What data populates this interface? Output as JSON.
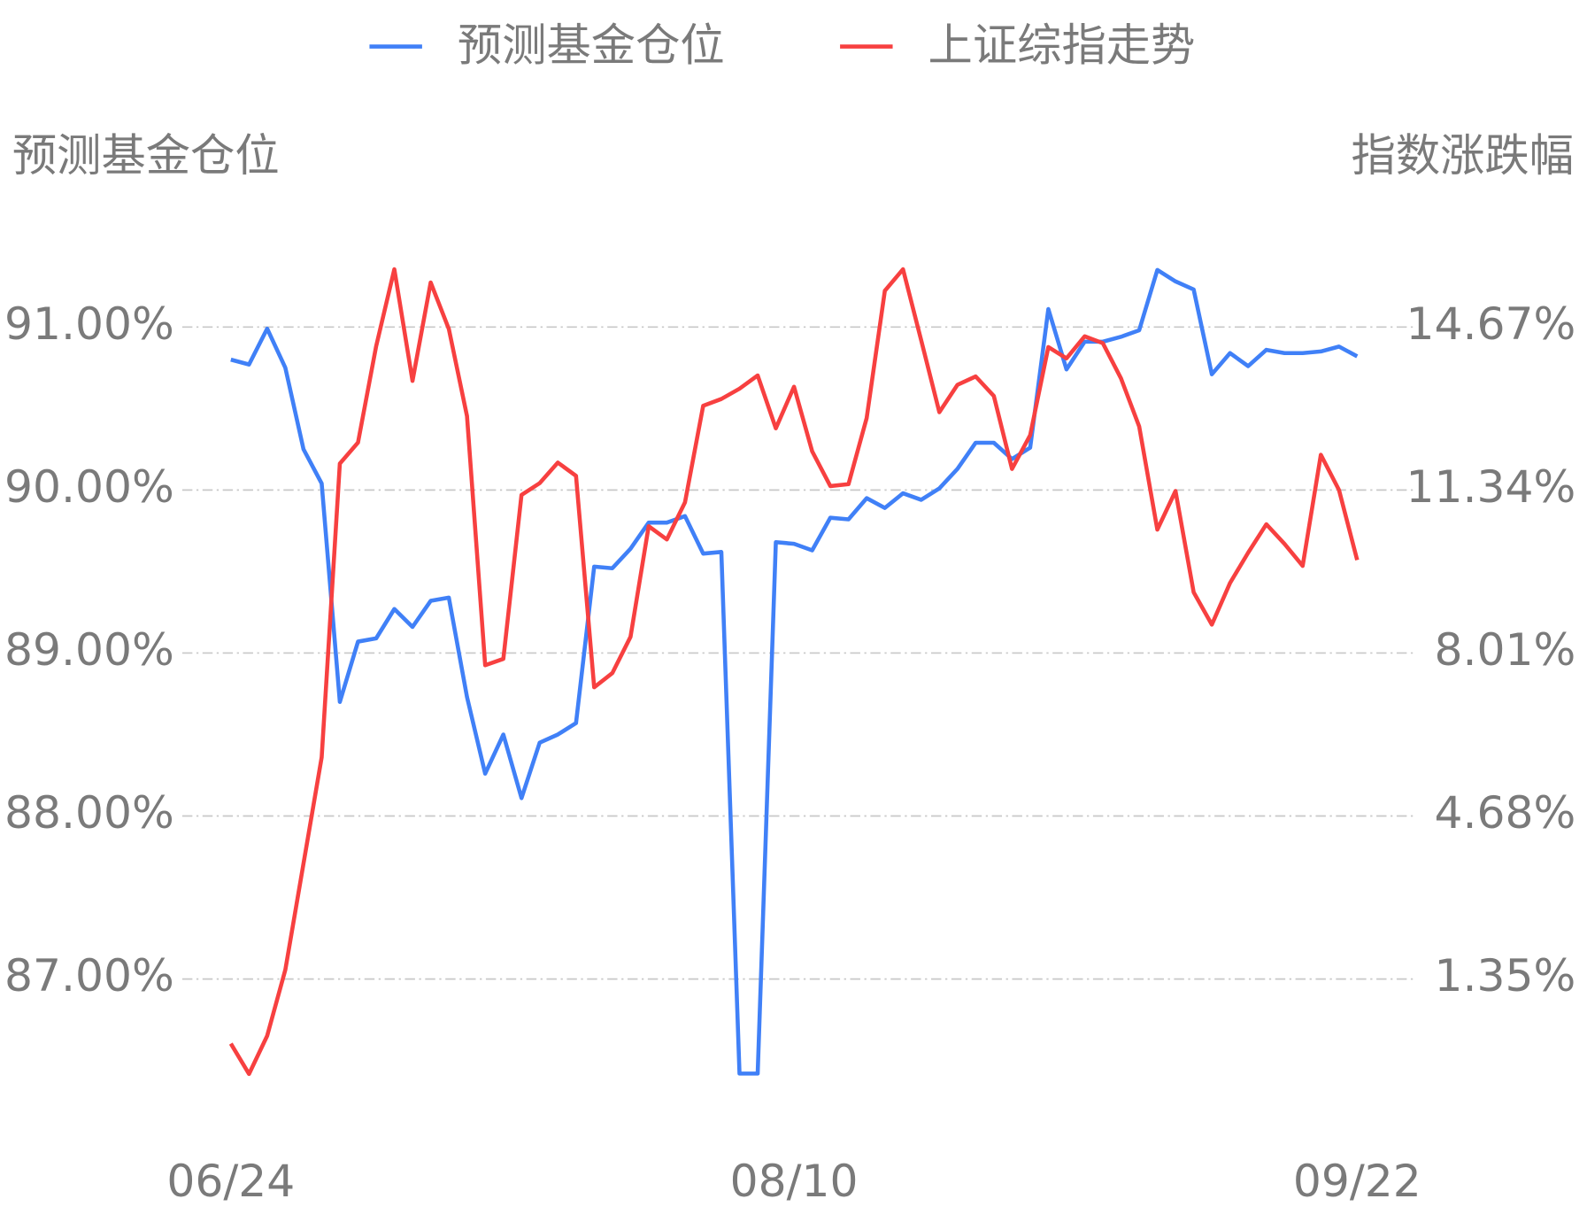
{
  "chart_data": {
    "type": "line",
    "y_label": "预测基金仓位",
    "y2_label": "指数涨跌幅",
    "categories": [
      "06/24",
      null,
      null,
      null,
      null,
      null,
      null,
      null,
      null,
      null,
      null,
      null,
      null,
      null,
      null,
      null,
      null,
      null,
      null,
      null,
      null,
      null,
      null,
      null,
      null,
      null,
      null,
      null,
      null,
      null,
      null,
      "08/10",
      null,
      null,
      null,
      null,
      null,
      null,
      null,
      null,
      null,
      null,
      null,
      null,
      null,
      null,
      null,
      null,
      null,
      null,
      null,
      null,
      null,
      null,
      null,
      null,
      null,
      null,
      null,
      null,
      null,
      null,
      "09/22"
    ],
    "series": [
      {
        "name": "预测基金仓位",
        "color": "#4080f7",
        "values": [
          90.8,
          90.77,
          90.99,
          90.75,
          90.25,
          90.04,
          88.7,
          89.07,
          89.09,
          89.27,
          89.16,
          89.32,
          89.34,
          88.73,
          88.26,
          88.5,
          88.11,
          88.45,
          88.5,
          88.57,
          89.53,
          89.52,
          89.64,
          89.8,
          89.8,
          89.84,
          89.61,
          89.62,
          86.42,
          86.42,
          89.68,
          89.67,
          89.63,
          89.83,
          89.82,
          89.95,
          89.89,
          89.98,
          89.94,
          90.01,
          90.13,
          90.29,
          90.29,
          90.19,
          90.26,
          91.11,
          90.74,
          90.91,
          90.91,
          90.94,
          90.98,
          91.35,
          91.28,
          91.23,
          90.71,
          90.84,
          90.76,
          90.86,
          90.84,
          90.84,
          90.85,
          90.88,
          90.82
        ]
      },
      {
        "name": "上证综指走势",
        "color": "#f74040",
        "axis": "y2",
        "values": [
          0.03,
          -0.59,
          0.19,
          1.54,
          3.71,
          5.88,
          11.88,
          12.31,
          14.28,
          15.85,
          13.57,
          15.58,
          14.63,
          12.85,
          7.76,
          7.89,
          11.24,
          11.48,
          11.9,
          11.63,
          7.31,
          7.6,
          8.34,
          10.6,
          10.33,
          11.09,
          13.06,
          13.2,
          13.41,
          13.68,
          12.6,
          13.45,
          12.13,
          11.42,
          11.46,
          12.81,
          15.41,
          15.85,
          14.4,
          12.93,
          13.49,
          13.66,
          13.26,
          11.77,
          12.46,
          14.26,
          14.03,
          14.48,
          14.34,
          13.62,
          12.64,
          10.53,
          11.32,
          9.25,
          8.59,
          9.44,
          10.06,
          10.64,
          10.24,
          9.79,
          12.06,
          11.34,
          9.91
        ]
      }
    ],
    "ylim": [
      86.3,
      91.6
    ],
    "yticks": [
      {
        "value": 87,
        "label": "87.00%"
      },
      {
        "value": 88,
        "label": "88.00%"
      },
      {
        "value": 89,
        "label": "89.00%"
      },
      {
        "value": 90,
        "label": "90.00%"
      },
      {
        "value": 91,
        "label": "91.00%"
      }
    ],
    "y2lim": [
      -0.981,
      16.668
    ],
    "y2ticks": [
      {
        "value": 1.35,
        "label": "1.35%"
      },
      {
        "value": 4.68,
        "label": "4.68%"
      },
      {
        "value": 8.01,
        "label": "8.01%"
      },
      {
        "value": 11.34,
        "label": "11.34%"
      },
      {
        "value": 14.67,
        "label": "14.67%"
      }
    ],
    "grid": true,
    "legend": "top"
  }
}
